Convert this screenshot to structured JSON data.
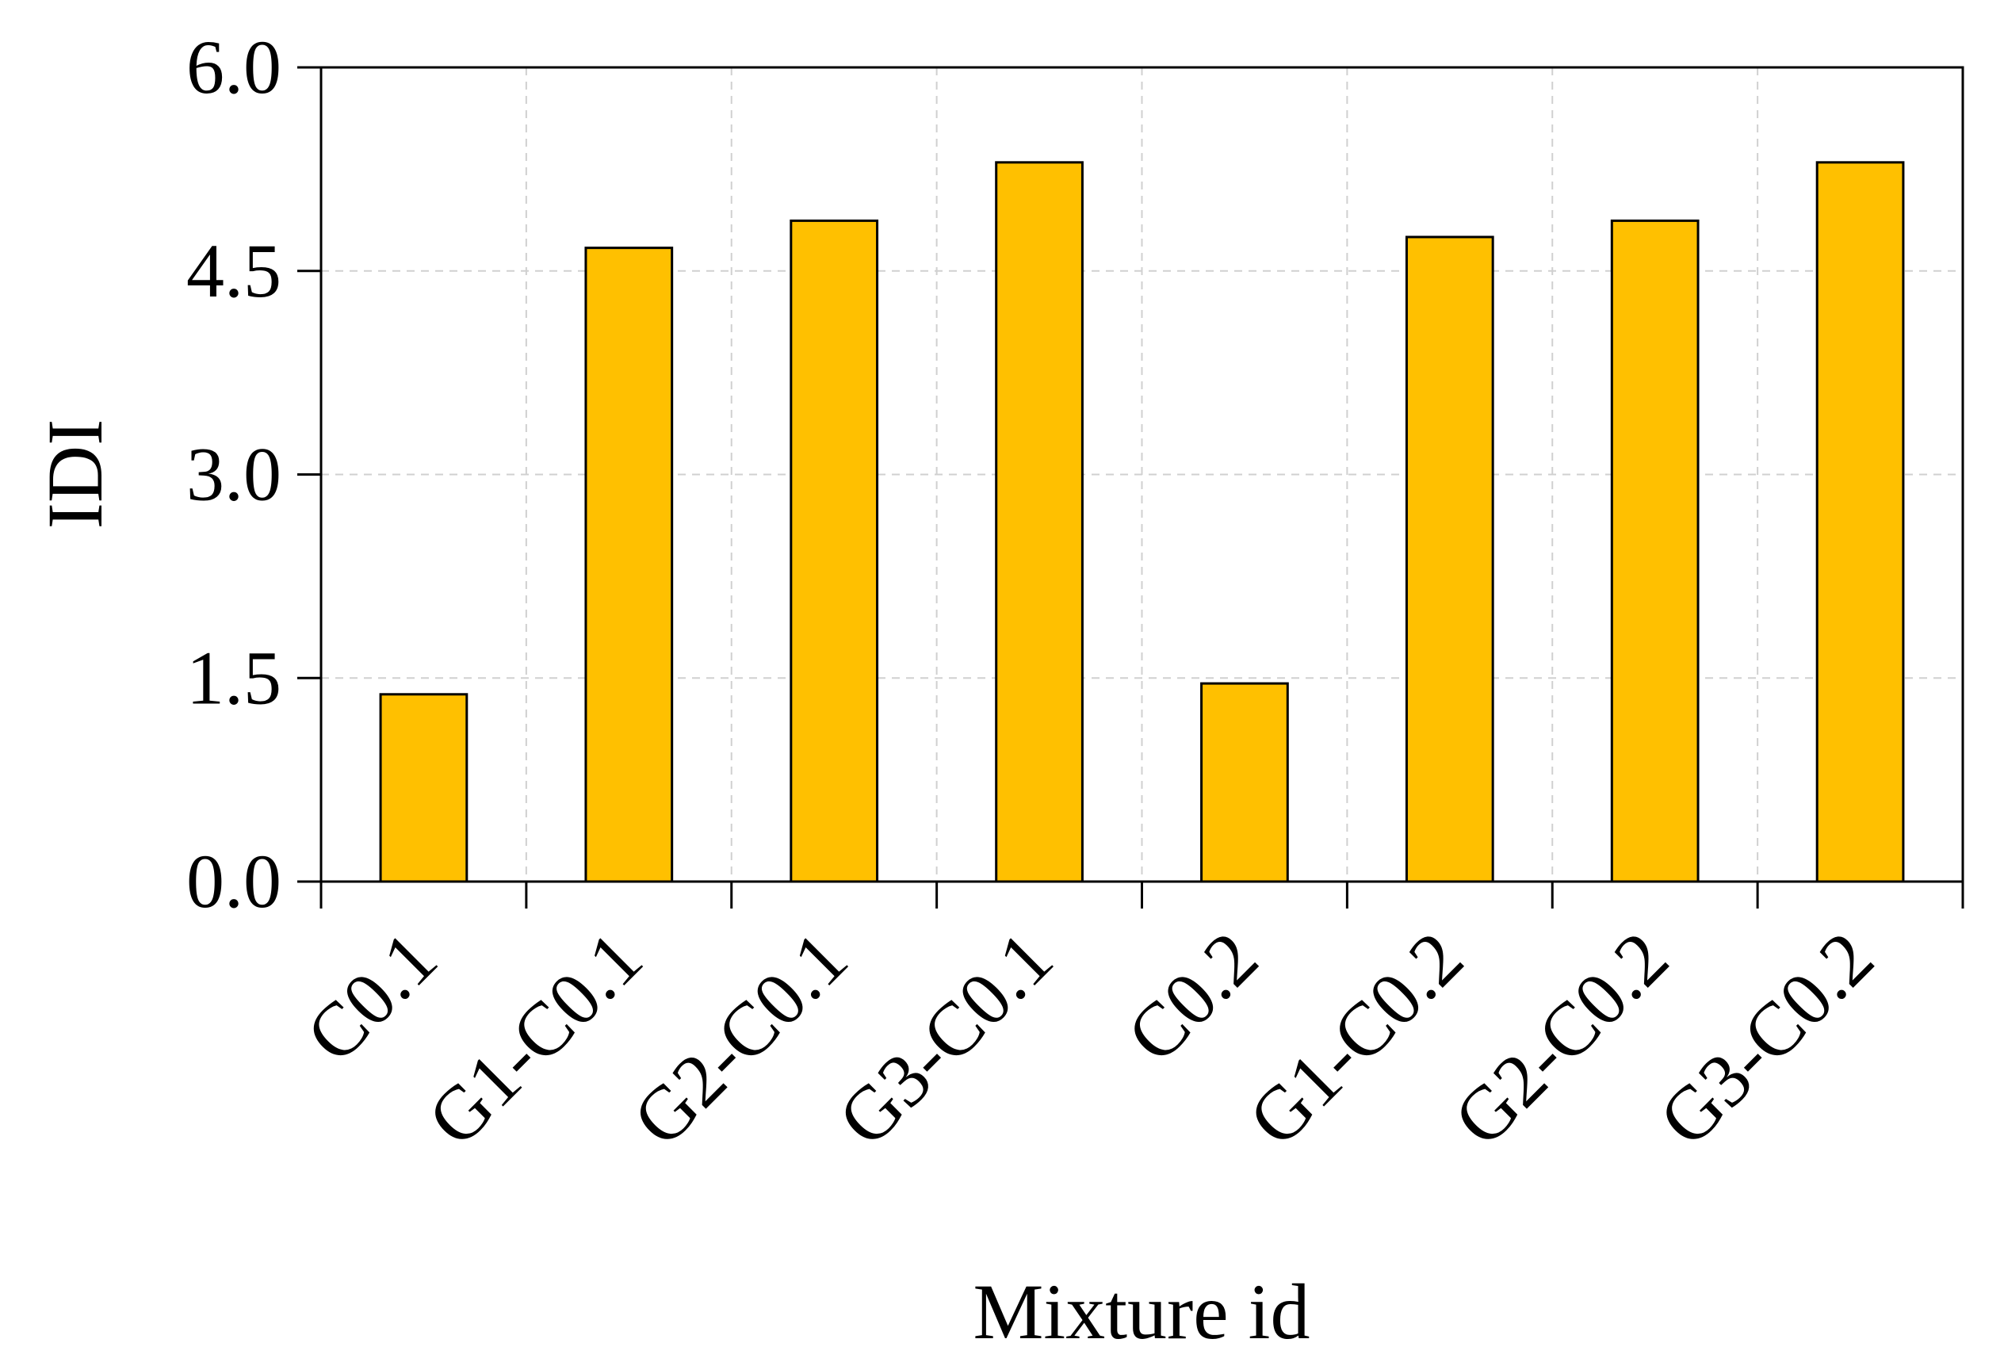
{
  "chart_data": {
    "type": "bar",
    "title": "",
    "xlabel": "Mixture id",
    "ylabel": "IDI",
    "categories": [
      "C0.1",
      "G1-C0.1",
      "G2-C0.1",
      "G3-C0.1",
      "C0.2",
      "G1-C0.2",
      "G2-C0.2",
      "G3-C0.2"
    ],
    "values": [
      1.38,
      4.67,
      4.87,
      5.3,
      1.46,
      4.75,
      4.87,
      5.3
    ],
    "ylim": [
      0,
      6
    ],
    "yticks": [
      "0.0",
      "1.5",
      "3.0",
      "4.5",
      "6.0"
    ],
    "ytick_values": [
      0,
      1.5,
      3,
      4.5,
      6
    ],
    "grid": true,
    "legend": "none",
    "bar_color": "#FFC000",
    "bar_edge_color": "#000000",
    "grid_color": "#D0D0D0"
  }
}
